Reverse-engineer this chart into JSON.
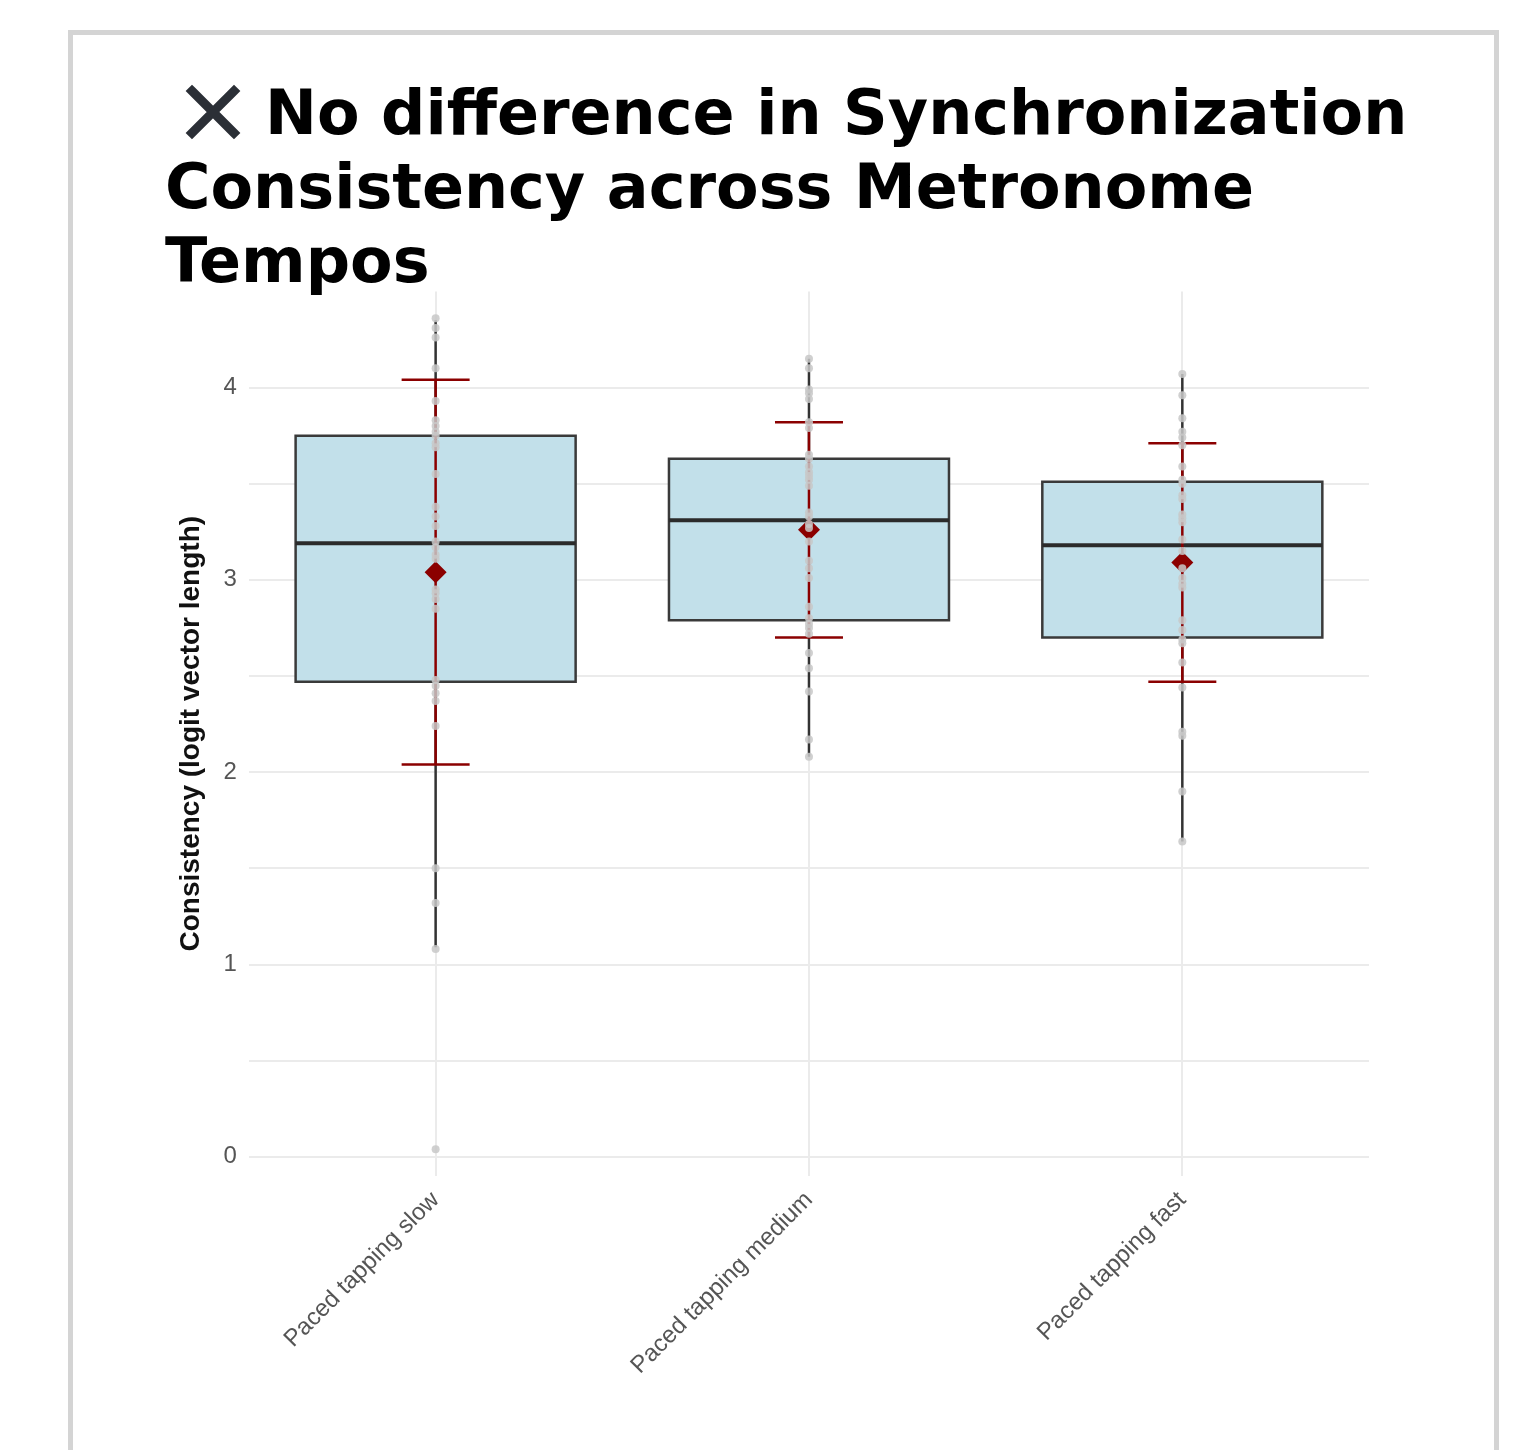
{
  "chart_data": {
    "type": "box",
    "title": "No difference in Synchronization Consistency across Metronome Tempos",
    "ylabel": "Consistency (logit vector length)",
    "categories": [
      "Paced tapping slow",
      "Paced tapping medium",
      "Paced tapping fast"
    ],
    "ylim": [
      -0.1,
      4.5
    ],
    "yticks": [
      0,
      {
        "value": 0.5,
        "label": null
      },
      1,
      {
        "value": 1.5,
        "label": null
      },
      2,
      {
        "value": 2.5,
        "label": null
      },
      3,
      {
        "value": 3.5,
        "label": null
      },
      4
    ],
    "grid": true,
    "legend": false,
    "series": [
      {
        "color": "#c2e0ea",
        "boxes": [
          {
            "low": 1.09,
            "q1": 2.47,
            "median": 3.19,
            "q3": 3.75,
            "high": 4.35
          },
          {
            "low": 2.08,
            "q1": 2.79,
            "median": 3.31,
            "q3": 3.63,
            "high": 4.15
          },
          {
            "low": 1.64,
            "q1": 2.7,
            "median": 3.18,
            "q3": 3.51,
            "high": 4.07
          }
        ]
      },
      {
        "type": "scatter",
        "color": "#c8c8c8",
        "marker": "circle",
        "x": [
          "Paced tapping slow",
          "Paced tapping slow",
          "Paced tapping slow",
          "Paced tapping slow",
          "Paced tapping slow",
          "Paced tapping slow",
          "Paced tapping slow",
          "Paced tapping slow",
          "Paced tapping slow",
          "Paced tapping slow",
          "Paced tapping slow",
          "Paced tapping slow",
          "Paced tapping slow",
          "Paced tapping slow",
          "Paced tapping slow",
          "Paced tapping slow",
          "Paced tapping slow",
          "Paced tapping slow",
          "Paced tapping slow",
          "Paced tapping slow",
          "Paced tapping slow",
          "Paced tapping slow",
          "Paced tapping slow",
          "Paced tapping slow",
          "Paced tapping slow",
          "Paced tapping slow",
          "Paced tapping slow",
          "Paced tapping slow",
          "Paced tapping slow",
          "Paced tapping slow",
          "Paced tapping slow",
          "Paced tapping slow",
          "Paced tapping medium",
          "Paced tapping medium",
          "Paced tapping medium",
          "Paced tapping medium",
          "Paced tapping medium",
          "Paced tapping medium",
          "Paced tapping medium",
          "Paced tapping medium",
          "Paced tapping medium",
          "Paced tapping medium",
          "Paced tapping medium",
          "Paced tapping medium",
          "Paced tapping medium",
          "Paced tapping medium",
          "Paced tapping medium",
          "Paced tapping medium",
          "Paced tapping medium",
          "Paced tapping medium",
          "Paced tapping medium",
          "Paced tapping medium",
          "Paced tapping medium",
          "Paced tapping medium",
          "Paced tapping medium",
          "Paced tapping medium",
          "Paced tapping medium",
          "Paced tapping medium",
          "Paced tapping medium",
          "Paced tapping medium",
          "Paced tapping medium",
          "Paced tapping medium",
          "Paced tapping medium",
          "Paced tapping medium",
          "Paced tapping fast",
          "Paced tapping fast",
          "Paced tapping fast",
          "Paced tapping fast",
          "Paced tapping fast",
          "Paced tapping fast",
          "Paced tapping fast",
          "Paced tapping fast",
          "Paced tapping fast",
          "Paced tapping fast",
          "Paced tapping fast",
          "Paced tapping fast",
          "Paced tapping fast",
          "Paced tapping fast",
          "Paced tapping fast",
          "Paced tapping fast",
          "Paced tapping fast",
          "Paced tapping fast",
          "Paced tapping fast",
          "Paced tapping fast",
          "Paced tapping fast",
          "Paced tapping fast",
          "Paced tapping fast",
          "Paced tapping fast",
          "Paced tapping fast",
          "Paced tapping fast",
          "Paced tapping fast",
          "Paced tapping fast",
          "Paced tapping fast",
          "Paced tapping fast"
        ],
        "values": [
          4.36,
          4.26,
          4.31,
          4.1,
          3.93,
          3.83,
          3.8,
          3.77,
          3.75,
          3.69,
          3.71,
          3.55,
          3.38,
          3.33,
          3.28,
          3.2,
          3.17,
          3.11,
          3.13,
          2.95,
          2.9,
          2.93,
          2.85,
          2.48,
          2.45,
          2.41,
          2.37,
          2.24,
          1.5,
          1.32,
          1.08,
          0.04,
          4.15,
          4.1,
          3.99,
          3.97,
          3.94,
          3.82,
          3.79,
          3.65,
          3.63,
          3.59,
          3.56,
          3.54,
          3.52,
          3.49,
          3.33,
          3.35,
          3.27,
          3.29,
          3.2,
          3.1,
          3.06,
          3.01,
          2.86,
          2.8,
          2.77,
          2.75,
          2.72,
          2.62,
          2.54,
          2.42,
          2.17,
          2.08,
          4.07,
          3.96,
          3.84,
          3.77,
          3.74,
          3.7,
          3.59,
          3.52,
          3.5,
          3.44,
          3.42,
          3.34,
          3.32,
          3.3,
          3.21,
          3.15,
          3.06,
          3.01,
          2.98,
          2.96,
          2.79,
          2.74,
          2.67,
          2.69,
          2.57,
          2.44,
          2.19,
          2.21,
          1.9,
          1.64
        ]
      },
      {
        "type": "scatter",
        "color": "#8b0000",
        "marker": "diamond",
        "x": [
          "Paced tapping slow",
          "Paced tapping medium",
          "Paced tapping fast"
        ],
        "values": [
          3.04,
          3.26,
          3.09
        ],
        "errors": [
          1.0,
          0.56,
          0.62
        ]
      }
    ]
  }
}
